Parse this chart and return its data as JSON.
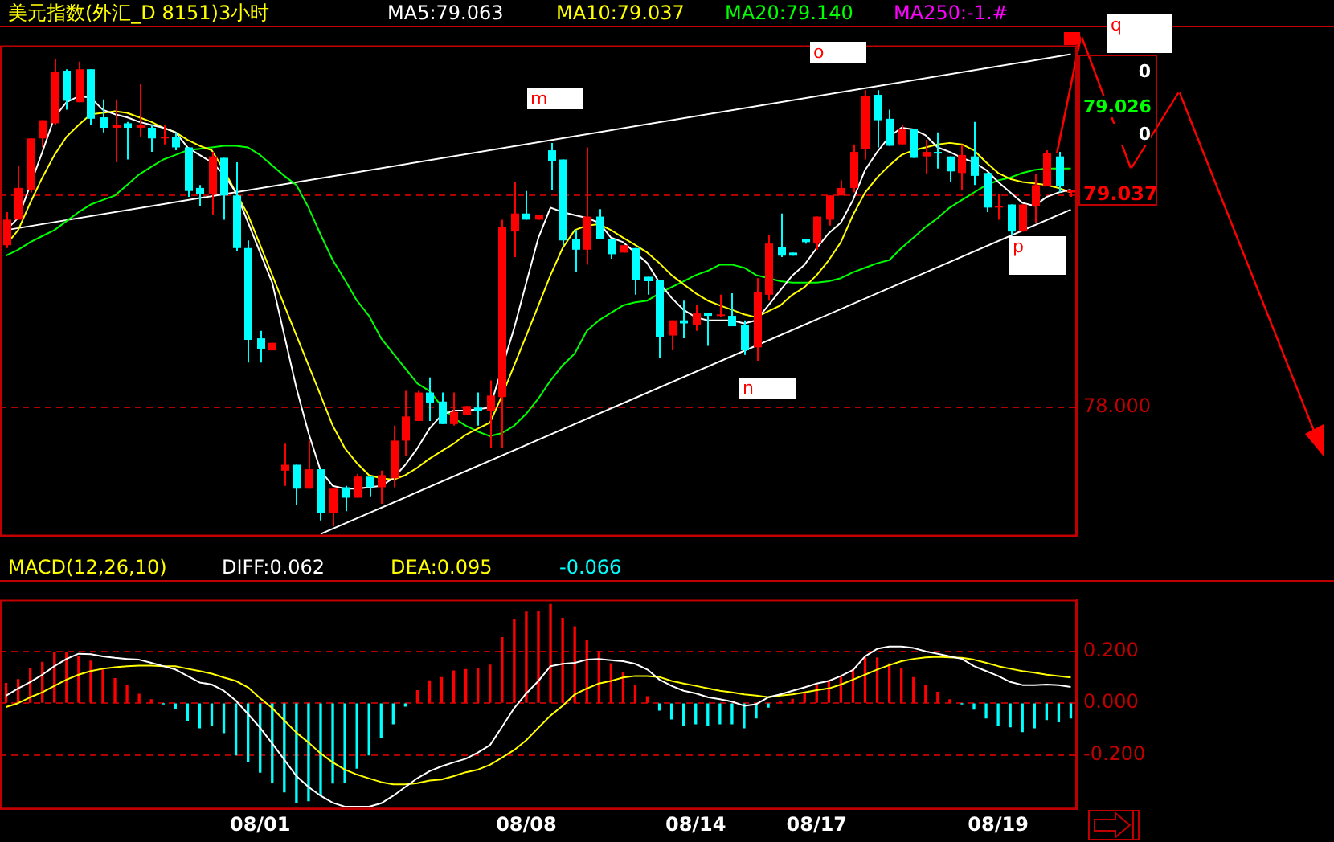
{
  "chart_data": [
    {
      "type": "candlestick",
      "title": "美元指数(外汇_D 8151)3小时",
      "categories": [
        null,
        null,
        null,
        null,
        null,
        null,
        null,
        null,
        null,
        null,
        null,
        null,
        null,
        null,
        null,
        null,
        null,
        null,
        null,
        null,
        null,
        null,
        null,
        null,
        null,
        null,
        null,
        null,
        null,
        null,
        null,
        null,
        null,
        null,
        null,
        null,
        null,
        null,
        null,
        null,
        null,
        null,
        null,
        null,
        null,
        null,
        null,
        null,
        null,
        null,
        null,
        null,
        null,
        null,
        null,
        null,
        null,
        null,
        null,
        null,
        null,
        null,
        null,
        null,
        null,
        null,
        null,
        null,
        null,
        null,
        null,
        null,
        null,
        null,
        null,
        null,
        null,
        null,
        null,
        null,
        null,
        null,
        null,
        null,
        null,
        null,
        null,
        null,
        null
      ],
      "ohlc": [
        [
          78.793,
          78.955,
          78.779,
          78.918
        ],
        [
          78.918,
          79.183,
          78.918,
          79.073
        ],
        [
          79.065,
          79.315,
          79.051,
          79.315
        ],
        [
          79.315,
          79.404,
          79.271,
          79.404
        ],
        [
          79.389,
          79.705,
          79.381,
          79.639
        ],
        [
          79.646,
          79.653,
          79.455,
          79.499
        ],
        [
          79.492,
          79.69,
          79.492,
          79.653
        ],
        [
          79.653,
          79.653,
          79.381,
          79.411
        ],
        [
          79.418,
          79.506,
          79.345,
          79.367
        ],
        [
          79.367,
          79.506,
          79.198,
          79.381
        ],
        [
          79.389,
          79.396,
          79.212,
          79.367
        ],
        [
          79.367,
          79.58,
          79.323,
          79.381
        ],
        [
          79.367,
          79.381,
          79.249,
          79.315
        ],
        [
          79.315,
          79.381,
          79.286,
          79.323
        ],
        [
          79.323,
          79.345,
          79.257,
          79.271
        ],
        [
          79.271,
          79.271,
          79.029,
          79.058
        ],
        [
          79.073,
          79.087,
          78.985,
          79.043
        ],
        [
          79.043,
          79.249,
          78.94,
          79.227
        ],
        [
          79.22,
          79.22,
          78.918,
          79.036
        ],
        [
          79.036,
          79.198,
          78.764,
          78.779
        ],
        [
          78.779,
          78.816,
          78.22,
          78.33
        ],
        [
          78.338,
          78.375,
          78.22,
          78.286
        ],
        [
          78.279,
          78.316,
          78.279,
          78.316
        ],
        [
          77.691,
          77.823,
          77.617,
          77.72
        ],
        [
          77.72,
          77.72,
          77.522,
          77.603
        ],
        [
          77.603,
          77.838,
          77.603,
          77.698
        ],
        [
          77.698,
          77.698,
          77.448,
          77.485
        ],
        [
          77.485,
          77.603,
          77.419,
          77.603
        ],
        [
          77.61,
          77.617,
          77.493,
          77.559
        ],
        [
          77.559,
          77.676,
          77.559,
          77.662
        ],
        [
          77.662,
          77.662,
          77.566,
          77.61
        ],
        [
          77.61,
          77.691,
          77.529,
          77.669
        ],
        [
          77.654,
          77.911,
          77.61,
          77.838
        ],
        [
          77.838,
          78.081,
          77.764,
          77.956
        ],
        [
          77.934,
          78.081,
          77.934,
          78.073
        ],
        [
          78.073,
          78.147,
          77.934,
          78.022
        ],
        [
          78.029,
          78.073,
          77.919,
          77.919
        ],
        [
          77.919,
          78.073,
          77.911,
          77.978
        ],
        [
          77.963,
          78.007,
          77.963,
          78.007
        ],
        [
          78.0,
          78.073,
          77.911,
          77.985
        ],
        [
          77.985,
          78.132,
          77.801,
          78.058
        ],
        [
          78.051,
          78.918,
          77.801,
          78.882
        ],
        [
          78.86,
          79.102,
          78.735,
          78.948
        ],
        [
          78.948,
          79.058,
          78.918,
          78.918
        ],
        [
          78.918,
          78.94,
          78.918,
          78.94
        ],
        [
          79.257,
          79.293,
          79.065,
          79.205
        ],
        [
          79.212,
          79.212,
          78.793,
          78.816
        ],
        [
          78.823,
          78.867,
          78.661,
          78.771
        ],
        [
          78.771,
          79.271,
          78.698,
          78.933
        ],
        [
          78.933,
          78.97,
          78.823,
          78.823
        ],
        [
          78.823,
          78.823,
          78.727,
          78.749
        ],
        [
          78.757,
          78.793,
          78.757,
          78.793
        ],
        [
          78.779,
          78.779,
          78.551,
          78.624
        ],
        [
          78.639,
          78.639,
          78.551,
          78.617
        ],
        [
          78.624,
          78.624,
          78.242,
          78.345
        ],
        [
          78.352,
          78.426,
          78.279,
          78.426
        ],
        [
          78.426,
          78.522,
          78.338,
          78.411
        ],
        [
          78.404,
          78.499,
          78.375,
          78.463
        ],
        [
          78.463,
          78.463,
          78.301,
          78.448
        ],
        [
          78.448,
          78.551,
          78.441,
          78.455
        ],
        [
          78.448,
          78.558,
          78.397,
          78.397
        ],
        [
          78.404,
          78.426,
          78.257,
          78.279
        ],
        [
          78.294,
          78.632,
          78.228,
          78.566
        ],
        [
          78.551,
          78.845,
          78.522,
          78.801
        ],
        [
          78.786,
          78.948,
          78.735,
          78.742
        ],
        [
          78.757,
          78.757,
          78.742,
          78.742
        ],
        [
          78.823,
          78.823,
          78.801,
          78.808
        ],
        [
          78.801,
          78.933,
          78.771,
          78.933
        ],
        [
          78.918,
          79.036,
          78.889,
          79.036
        ],
        [
          79.036,
          79.11,
          79.036,
          79.073
        ],
        [
          79.073,
          79.286,
          79.051,
          79.249
        ],
        [
          79.264,
          79.551,
          79.212,
          79.521
        ],
        [
          79.528,
          79.551,
          79.271,
          79.404
        ],
        [
          79.411,
          79.455,
          79.279,
          79.279
        ],
        [
          79.286,
          79.381,
          79.286,
          79.359
        ],
        [
          79.359,
          79.359,
          79.22,
          79.22
        ],
        [
          79.227,
          79.308,
          79.139,
          79.249
        ],
        [
          79.249,
          79.345,
          79.168,
          79.242
        ],
        [
          79.227,
          79.227,
          79.102,
          79.154
        ],
        [
          79.146,
          79.286,
          79.065,
          79.234
        ],
        [
          79.227,
          79.396,
          79.087,
          79.132
        ],
        [
          79.146,
          79.146,
          78.955,
          78.977
        ],
        [
          78.977,
          79.043,
          78.918,
          78.985
        ],
        [
          78.992,
          78.992,
          78.845,
          78.86
        ],
        [
          78.86,
          78.992,
          78.86,
          78.992
        ],
        [
          78.985,
          79.139,
          78.904,
          79.087
        ],
        [
          79.08,
          79.257,
          79.08,
          79.242
        ],
        [
          79.227,
          79.249,
          79.051,
          79.08
        ],
        [
          79.051,
          79.065,
          79.029,
          79.062
        ]
      ],
      "colors": [
        "#ff0000",
        "#ff0000",
        "#ff0000",
        "#ff0000",
        "#ff0000",
        "#00ffff",
        "#ff0000",
        "#00ffff",
        "#00ffff",
        "#ff0000",
        "#00ffff",
        "#ff0000",
        "#00ffff",
        "#ff0000",
        "#00ffff",
        "#00ffff",
        "#00ffff",
        "#ff0000",
        "#00ffff",
        "#00ffff",
        "#00ffff",
        "#00ffff",
        "#ff0000",
        "#ff0000",
        "#00ffff",
        "#ff0000",
        "#00ffff",
        "#ff0000",
        "#00ffff",
        "#ff0000",
        "#00ffff",
        "#ff0000",
        "#ff0000",
        "#ff0000",
        "#ff0000",
        "#00ffff",
        "#00ffff",
        "#ff0000",
        "#ff0000",
        "#00ffff",
        "#ff0000",
        "#ff0000",
        "#ff0000",
        "#00ffff",
        "#ff0000",
        "#00ffff",
        "#00ffff",
        "#00ffff",
        "#ff0000",
        "#00ffff",
        "#00ffff",
        "#ff0000",
        "#00ffff",
        "#00ffff",
        "#00ffff",
        "#ff0000",
        "#00ffff",
        "#ff0000",
        "#00ffff",
        "#ff0000",
        "#00ffff",
        "#00ffff",
        "#ff0000",
        "#ff0000",
        "#00ffff",
        "#00ffff",
        "#00ffff",
        "#ff0000",
        "#ff0000",
        "#ff0000",
        "#ff0000",
        "#ff0000",
        "#00ffff",
        "#00ffff",
        "#ff0000",
        "#00ffff",
        "#ff0000",
        "#00ffff",
        "#00ffff",
        "#ff0000",
        "#00ffff",
        "#00ffff",
        "#ff0000",
        "#00ffff",
        "#ff0000",
        "#ff0000",
        "#ff0000",
        "#00ffff",
        "#ff0000"
      ],
      "series": [
        {
          "name": "MA5:79.063",
          "type": "line",
          "color": "#ffffff",
          "values": [
            78.867,
            78.926,
            79.087,
            79.249,
            79.418,
            79.492,
            79.521,
            79.514,
            79.455,
            79.433,
            79.418,
            79.396,
            79.381,
            79.367,
            79.345,
            79.271,
            79.234,
            79.198,
            79.139,
            79.051,
            78.904,
            78.757,
            78.61,
            78.352,
            78.095,
            77.875,
            77.691,
            77.617,
            77.603,
            77.603,
            77.61,
            77.617,
            77.654,
            77.72,
            77.801,
            77.897,
            77.963,
            77.985,
            77.985,
            77.992,
            78.0,
            null,
            78.389,
            78.61,
            78.83,
            78.977,
            78.955,
            78.94,
            78.926,
            78.904,
            78.83,
            78.808,
            78.757,
            78.705,
            78.61,
            78.536,
            78.477,
            78.441,
            78.426,
            78.426,
            78.426,
            78.411,
            78.426,
            78.499,
            78.573,
            78.646,
            78.698,
            78.779,
            78.852,
            78.904,
            79.014,
            79.161,
            79.249,
            79.323,
            79.367,
            79.359,
            79.33,
            79.271,
            79.249,
            79.22,
            79.198,
            79.161,
            79.102,
            79.051,
            79.0,
            78.985,
            79.029,
            79.051,
            79.065
          ]
        },
        {
          "name": "MA10:79.037",
          "type": "line",
          "color": "#ffff00",
          "values": [
            78.794,
            78.867,
            79.0,
            79.124,
            79.234,
            79.323,
            79.381,
            79.433,
            79.44,
            79.448,
            79.44,
            79.418,
            79.396,
            79.367,
            79.345,
            79.308,
            79.279,
            79.257,
            79.161,
            79.051,
            78.941,
            78.794,
            78.647,
            78.499,
            78.352,
            78.206,
            78.059,
            77.911,
            77.801,
            77.728,
            77.669,
            77.654,
            77.647,
            77.669,
            77.706,
            77.75,
            77.787,
            77.823,
            77.867,
            77.897,
            77.926,
            78.059,
            78.206,
            78.352,
            78.499,
            78.647,
            78.779,
            78.867,
            78.889,
            78.896,
            78.867,
            78.83,
            78.794,
            78.757,
            78.705,
            78.647,
            78.602,
            78.558,
            78.522,
            78.499,
            78.477,
            78.455,
            78.441,
            78.47,
            78.499,
            78.551,
            78.588,
            78.647,
            78.72,
            78.808,
            78.941,
            79.051,
            79.124,
            79.183,
            79.234,
            79.257,
            79.271,
            79.286,
            79.293,
            79.286,
            79.257,
            79.198,
            79.146,
            79.117,
            79.102,
            79.095,
            79.087,
            79.073,
            79.051
          ]
        },
        {
          "name": "MA20:79.140",
          "type": "line",
          "color": "#00ff00",
          "values": [
            78.742,
            78.771,
            78.808,
            78.838,
            78.867,
            78.911,
            78.955,
            78.992,
            79.014,
            79.036,
            79.087,
            79.139,
            79.176,
            79.212,
            79.234,
            79.257,
            79.264,
            79.271,
            79.279,
            79.279,
            79.271,
            79.234,
            79.183,
            79.132,
            79.087,
            78.977,
            78.845,
            78.72,
            78.624,
            78.522,
            78.448,
            78.338,
            78.264,
            78.191,
            78.117,
            78.081,
            78.007,
            77.948,
            77.911,
            77.882,
            77.86,
            77.875,
            77.911,
            77.97,
            78.044,
            78.132,
            78.206,
            78.264,
            78.375,
            78.426,
            78.463,
            78.499,
            78.514,
            78.522,
            78.558,
            78.588,
            78.617,
            78.647,
            78.668,
            78.698,
            78.698,
            78.683,
            78.647,
            78.632,
            78.617,
            78.61,
            78.61,
            78.61,
            78.617,
            78.632,
            78.661,
            78.683,
            78.705,
            78.72,
            78.779,
            78.83,
            78.882,
            78.926,
            78.977,
            79.014,
            79.051,
            79.087,
            79.11,
            79.124,
            79.146,
            79.161,
            79.168,
            79.168,
            79.168
          ]
        },
        {
          "name": "MA250:-1.#",
          "type": "line",
          "color": "#ff00ff",
          "values": [
            null,
            null,
            null,
            null,
            null,
            null,
            null,
            null,
            null,
            null,
            null,
            null,
            null,
            null,
            null,
            null,
            null,
            null,
            null,
            null,
            null,
            null,
            null,
            null,
            null,
            null,
            null,
            null,
            null,
            null,
            null,
            null,
            null,
            null,
            null,
            null,
            null,
            null,
            null,
            null,
            null,
            null,
            null,
            null,
            null,
            null,
            null,
            null,
            null,
            null,
            null,
            null,
            null,
            null,
            null,
            null,
            null,
            null,
            null,
            null,
            null,
            null,
            null,
            null,
            null,
            null,
            null,
            null,
            null,
            null,
            null,
            null,
            null,
            null,
            null,
            null,
            null,
            null,
            null,
            null,
            null,
            null,
            null,
            null,
            null,
            null,
            null,
            null,
            null
          ]
        },
        {
          "type": "line",
          "color": "#ffffff",
          "values": [
            78.867,
            null,
            null,
            null,
            null,
            null,
            null,
            null,
            null,
            null,
            null,
            null,
            null,
            null,
            null,
            null,
            null,
            null,
            null,
            null,
            null,
            null,
            null,
            null,
            null,
            null,
            null,
            null,
            null,
            null,
            null,
            null,
            null,
            null,
            null,
            null,
            null,
            null,
            null,
            null,
            null,
            null,
            null,
            null,
            null,
            null,
            null,
            null,
            null,
            null,
            null,
            null,
            null,
            null,
            null,
            null,
            null,
            null,
            null,
            null,
            null,
            null,
            null,
            null,
            null,
            null,
            null,
            null,
            null,
            null,
            null,
            null,
            null,
            null,
            null,
            null,
            null,
            null,
            null,
            null,
            null,
            null,
            null,
            null,
            null,
            null,
            null,
            null,
            79.726
          ]
        },
        {
          "type": "line",
          "color": "#ffffff",
          "values": [
            null,
            null,
            null,
            null,
            null,
            null,
            null,
            null,
            null,
            null,
            null,
            null,
            null,
            null,
            null,
            null,
            null,
            null,
            null,
            null,
            null,
            null,
            null,
            null,
            null,
            null,
            77.382,
            null,
            null,
            null,
            null,
            null,
            null,
            null,
            null,
            null,
            null,
            null,
            null,
            null,
            null,
            null,
            null,
            null,
            null,
            null,
            null,
            null,
            null,
            null,
            null,
            null,
            null,
            null,
            null,
            null,
            null,
            null,
            null,
            null,
            null,
            null,
            null,
            null,
            null,
            null,
            null,
            null,
            null,
            null,
            null,
            null,
            null,
            null,
            null,
            null,
            null,
            null,
            null,
            null,
            null,
            null,
            null,
            null,
            null,
            null,
            null,
            null,
            78.967
          ]
        }
      ],
      "ylim": [
        77.37,
        79.77
      ],
      "yticks": [
        {
          "value": 78,
          "label": "78.000"
        },
        79.037
      ],
      "grid": "y",
      "legend": "top",
      "tick_labels": "y",
      "annotations": [
        "m",
        "n",
        "o",
        "p",
        "q",
        "0",
        "79.026",
        "0"
      ]
    },
    {
      "type": "bar",
      "title": "MACD(12,26,10)",
      "categories": [
        null,
        null,
        null,
        null,
        null,
        null,
        null,
        null,
        null,
        null,
        null,
        null,
        null,
        null,
        null,
        null,
        null,
        null,
        null,
        null,
        null,
        "08/01",
        null,
        null,
        null,
        null,
        null,
        null,
        null,
        null,
        null,
        null,
        null,
        null,
        null,
        null,
        null,
        null,
        null,
        null,
        null,
        null,
        null,
        "08/08",
        null,
        null,
        null,
        null,
        null,
        null,
        null,
        null,
        null,
        null,
        null,
        null,
        null,
        "08/14",
        null,
        null,
        null,
        null,
        null,
        null,
        null,
        null,
        null,
        "08/17",
        null,
        null,
        null,
        null,
        null,
        null,
        null,
        null,
        null,
        null,
        null,
        null,
        null,
        null,
        "08/19",
        null,
        null,
        null,
        null,
        null,
        null
      ],
      "series": [
        {
          "name": "DIFF:0.062",
          "type": "line",
          "color": "#ffffff",
          "values": [
            0.029,
            0.057,
            0.082,
            0.11,
            0.143,
            0.171,
            0.191,
            0.189,
            0.181,
            0.175,
            0.171,
            0.168,
            0.156,
            0.143,
            0.13,
            0.105,
            0.08,
            0.072,
            0.048,
            0.01,
            -0.042,
            -0.095,
            -0.156,
            -0.219,
            -0.282,
            -0.324,
            -0.358,
            -0.385,
            -0.4,
            -0.4,
            -0.4,
            -0.387,
            -0.358,
            -0.324,
            -0.29,
            -0.263,
            -0.244,
            -0.229,
            -0.215,
            -0.191,
            -0.162,
            -0.091,
            -0.019,
            0.038,
            0.086,
            0.143,
            0.152,
            0.156,
            0.168,
            0.171,
            0.166,
            0.162,
            0.152,
            0.13,
            0.091,
            0.067,
            0.048,
            0.038,
            0.023,
            0.015,
            0.006,
            -0.01,
            -0.004,
            0.023,
            0.034,
            0.048,
            0.061,
            0.076,
            0.086,
            0.105,
            0.128,
            0.181,
            0.21,
            0.219,
            0.219,
            0.213,
            0.2,
            0.191,
            0.181,
            0.171,
            0.143,
            0.124,
            0.105,
            0.082,
            0.07,
            0.07,
            0.072,
            0.07,
            0.063
          ]
        },
        {
          "name": "DEA:0.095",
          "type": "line",
          "color": "#ffff00",
          "values": [
            -0.015,
            0.0,
            0.023,
            0.042,
            0.067,
            0.091,
            0.11,
            0.124,
            0.133,
            0.139,
            0.143,
            0.145,
            0.145,
            0.143,
            0.143,
            0.133,
            0.124,
            0.114,
            0.099,
            0.086,
            0.061,
            0.019,
            -0.019,
            -0.067,
            -0.114,
            -0.152,
            -0.194,
            -0.229,
            -0.257,
            -0.276,
            -0.291,
            -0.305,
            -0.314,
            -0.314,
            -0.309,
            -0.299,
            -0.295,
            -0.282,
            -0.267,
            -0.257,
            -0.238,
            -0.21,
            -0.181,
            -0.143,
            -0.095,
            -0.048,
            -0.01,
            0.034,
            0.057,
            0.076,
            0.086,
            0.099,
            0.105,
            0.105,
            0.101,
            0.086,
            0.076,
            0.067,
            0.057,
            0.048,
            0.042,
            0.034,
            0.029,
            0.023,
            0.029,
            0.034,
            0.042,
            0.05,
            0.057,
            0.072,
            0.091,
            0.11,
            0.13,
            0.147,
            0.162,
            0.171,
            0.177,
            0.179,
            0.177,
            0.175,
            0.168,
            0.156,
            0.143,
            0.133,
            0.124,
            0.118,
            0.11,
            0.105,
            0.099
          ]
        },
        {
          "name": "-0.066",
          "type": "bar",
          "colors": [
            "#ff0000",
            "#ff0000",
            "#ff0000",
            "#ff0000",
            "#ff0000",
            "#ff0000",
            "#ff0000",
            "#ff0000",
            "#ff0000",
            "#ff0000",
            "#ff0000",
            "#ff0000",
            "#ff0000",
            "#00ffff",
            "#00ffff",
            "#00ffff",
            "#00ffff",
            "#00ffff",
            "#00ffff",
            "#00ffff",
            "#00ffff",
            "#00ffff",
            "#00ffff",
            "#00ffff",
            "#00ffff",
            "#00ffff",
            "#00ffff",
            "#00ffff",
            "#00ffff",
            "#00ffff",
            "#00ffff",
            "#00ffff",
            "#00ffff",
            "#00ffff",
            "#ff0000",
            "#ff0000",
            "#ff0000",
            "#ff0000",
            "#ff0000",
            "#ff0000",
            "#ff0000",
            "#ff0000",
            "#ff0000",
            "#ff0000",
            "#ff0000",
            "#ff0000",
            "#ff0000",
            "#ff0000",
            "#ff0000",
            "#ff0000",
            "#ff0000",
            "#ff0000",
            "#ff0000",
            "#ff0000",
            "#00ffff",
            "#00ffff",
            "#00ffff",
            "#00ffff",
            "#00ffff",
            "#00ffff",
            "#00ffff",
            "#00ffff",
            "#00ffff",
            "#00ffff",
            "#ff0000",
            "#ff0000",
            "#ff0000",
            "#ff0000",
            "#ff0000",
            "#ff0000",
            "#ff0000",
            "#ff0000",
            "#ff0000",
            "#ff0000",
            "#ff0000",
            "#ff0000",
            "#ff0000",
            "#ff0000",
            "#ff0000",
            "#00ffff",
            "#00ffff",
            "#00ffff",
            "#00ffff",
            "#00ffff",
            "#00ffff",
            "#00ffff",
            "#00ffff",
            "#00ffff",
            "#00ffff"
          ],
          "values": [
            0.076,
            0.091,
            0.133,
            0.158,
            0.194,
            0.194,
            0.181,
            0.162,
            0.128,
            0.095,
            0.067,
            0.034,
            0.013,
            -0.002,
            -0.019,
            -0.067,
            -0.095,
            -0.086,
            -0.114,
            -0.2,
            -0.225,
            -0.267,
            -0.305,
            -0.343,
            -0.385,
            -0.377,
            -0.352,
            -0.309,
            -0.305,
            -0.251,
            -0.2,
            -0.133,
            -0.08,
            -0.011,
            0.048,
            0.086,
            0.099,
            0.124,
            0.13,
            0.133,
            0.147,
            0.253,
            0.324,
            0.352,
            0.356,
            0.381,
            0.328,
            0.295,
            0.242,
            0.2,
            0.152,
            0.118,
            0.067,
            0.025,
            -0.027,
            -0.061,
            -0.086,
            -0.08,
            -0.086,
            -0.08,
            -0.08,
            -0.095,
            -0.057,
            -0.015,
            0.008,
            0.015,
            0.042,
            0.067,
            0.088,
            0.103,
            0.13,
            0.175,
            0.175,
            0.152,
            0.133,
            0.099,
            0.07,
            0.042,
            0.013,
            -0.002,
            -0.023,
            -0.057,
            -0.086,
            -0.091,
            -0.11,
            -0.095,
            -0.063,
            -0.072,
            -0.057
          ]
        }
      ],
      "ylim": [
        -0.41,
        0.4
      ],
      "yticks": [
        {
          "value": 0.2,
          "label": "0.200"
        },
        {
          "value": 0,
          "label": "0.000"
        },
        {
          "value": -0.2,
          "label": "-0.200"
        }
      ],
      "grid": "y",
      "legend": "top left"
    }
  ]
}
